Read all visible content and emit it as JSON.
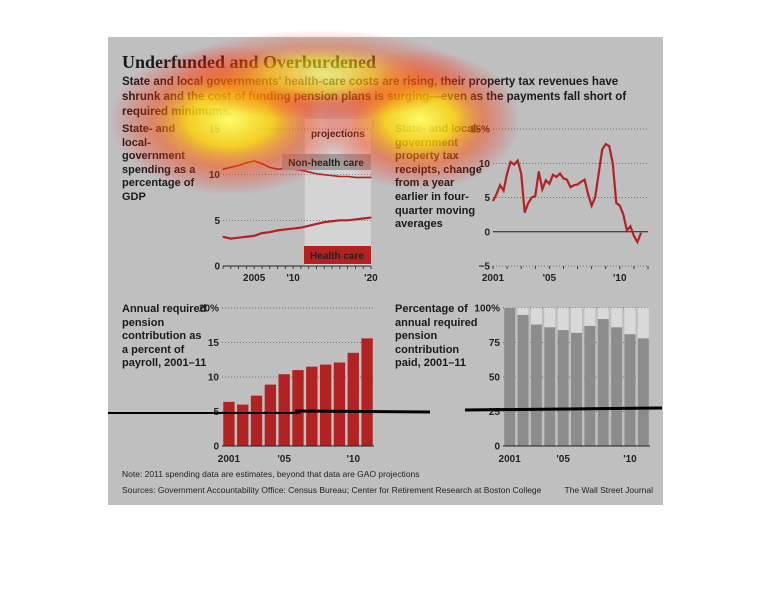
{
  "figure": {
    "title": "Underfunded and Overburdened",
    "subtitle": "State and local governments' health-care costs are rising, their property tax revenues have shrunk and the cost of funding pension plans is surging—even as the payments fall short of required minimums.",
    "note": "Note: 2011 spending data are estimates, beyond that data are GAO projections",
    "sources": "Sources: Government Accountability Office: Census Bureau; Center for Retirement Research at Boston College",
    "credit": "The Wall Street Journal"
  },
  "colors": {
    "panel_bg": "#bfbfbf",
    "red_series": "#b22222",
    "gray_bar": "#8c8c8c",
    "gray_bar_bg": "#d9d9d9",
    "projection_shade": "#d4d4d4"
  },
  "chart_data": [
    {
      "type": "line",
      "description": "State- and local-government spending as a percentage of GDP",
      "x": [
        2001,
        2002,
        2003,
        2004,
        2005,
        2006,
        2007,
        2008,
        2009,
        2010,
        2011,
        2012,
        2013,
        2014,
        2015,
        2016,
        2017,
        2018,
        2019,
        2020
      ],
      "series": [
        {
          "name": "Non-health care",
          "values": [
            10.6,
            10.8,
            11.0,
            11.3,
            11.5,
            11.2,
            10.8,
            10.6,
            10.7,
            10.6,
            10.5,
            10.3,
            10.1,
            10.0,
            9.9,
            9.8,
            9.8,
            9.7,
            9.7,
            9.7
          ]
        },
        {
          "name": "Health care",
          "values": [
            3.2,
            3.0,
            3.1,
            3.2,
            3.3,
            3.6,
            3.7,
            3.9,
            4.0,
            4.1,
            4.2,
            4.4,
            4.6,
            4.8,
            4.9,
            5.0,
            5.0,
            5.1,
            5.2,
            5.3
          ]
        }
      ],
      "projection_start": 2012,
      "projection_label": "projections",
      "ylim": [
        0,
        15
      ],
      "yticks": [
        "0",
        "5",
        "10",
        "15"
      ],
      "xticks": [
        "2005",
        "'10",
        "'20"
      ]
    },
    {
      "type": "line",
      "description": "State- and local-government property tax receipts, change from a year earlier in four-quarter moving averages",
      "x": [
        2001.0,
        2001.25,
        2001.5,
        2001.75,
        2002.0,
        2002.25,
        2002.5,
        2002.75,
        2003.0,
        2003.25,
        2003.5,
        2003.75,
        2004.0,
        2004.25,
        2004.5,
        2004.75,
        2005.0,
        2005.25,
        2005.5,
        2005.75,
        2006.0,
        2006.25,
        2006.5,
        2006.75,
        2007.0,
        2007.25,
        2007.5,
        2007.75,
        2008.0,
        2008.25,
        2008.5,
        2008.75,
        2009.0,
        2009.25,
        2009.5,
        2009.75,
        2010.0,
        2010.25,
        2010.5,
        2010.75,
        2011.0,
        2011.25,
        2011.5
      ],
      "series": [
        {
          "name": "",
          "values": [
            4.5,
            5.5,
            6.8,
            6.0,
            8.5,
            10.2,
            9.8,
            10.4,
            8.5,
            2.8,
            4.2,
            5.0,
            5.2,
            8.8,
            6.2,
            7.5,
            7.0,
            8.3,
            8.0,
            8.5,
            7.8,
            7.6,
            6.5,
            6.8,
            6.9,
            7.3,
            7.6,
            5.5,
            3.8,
            5.0,
            8.5,
            12.0,
            12.8,
            12.5,
            10.0,
            4.2,
            3.8,
            2.5,
            0.2,
            0.8,
            -0.6,
            -1.5,
            -0.2
          ]
        }
      ],
      "ylim": [
        -5,
        15
      ],
      "yticks": [
        "−5",
        "0",
        "5",
        "10",
        "15%"
      ],
      "xticks": [
        "2001",
        "'05",
        "'10"
      ]
    },
    {
      "type": "bar",
      "description": "Annual required pension contribution as a percent of payroll, 2001–11",
      "categories": [
        "2001",
        "2002",
        "2003",
        "2004",
        "2005",
        "2006",
        "2007",
        "2008",
        "2009",
        "2010",
        "2011"
      ],
      "values": [
        6.4,
        6.0,
        7.3,
        8.9,
        10.4,
        11.0,
        11.5,
        11.8,
        12.1,
        13.5,
        15.6
      ],
      "ylim": [
        0,
        20
      ],
      "yticks": [
        "0",
        "5",
        "10",
        "15",
        "20%"
      ],
      "xticks": [
        "2001",
        "'05",
        "'10"
      ]
    },
    {
      "type": "bar",
      "description": "Percentage of annual required pension contribution paid, 2001–11",
      "categories": [
        "2001",
        "2002",
        "2003",
        "2004",
        "2005",
        "2006",
        "2007",
        "2008",
        "2009",
        "2010",
        "2011"
      ],
      "values": [
        100,
        95,
        88,
        86,
        84,
        82,
        87,
        92,
        86,
        81,
        78
      ],
      "ylim": [
        0,
        100
      ],
      "yticks": [
        "0",
        "25",
        "50",
        "75",
        "100%"
      ],
      "xticks": [
        "2001",
        "'05",
        "'10"
      ]
    }
  ]
}
